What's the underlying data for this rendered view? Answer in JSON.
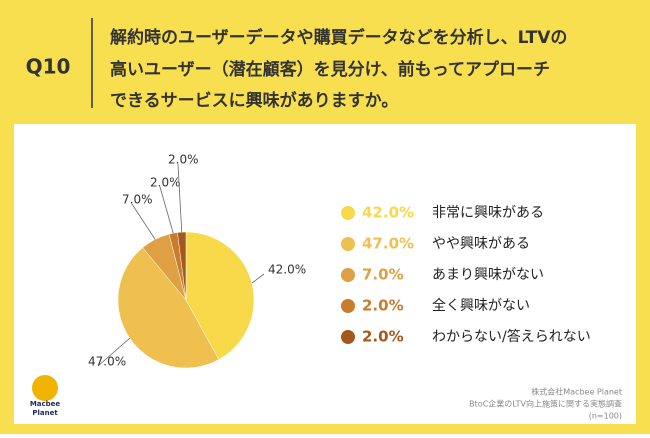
{
  "question_number": "Q10",
  "question_lines": [
    "解約時のユーザーデータや購買データなどを分析し、LTVの",
    "高いユーザー（潜在顧客）を見分け、前もってアプローチ",
    "できるサービスに興味がありますか。"
  ],
  "chart_data": {
    "type": "pie",
    "categories": [
      "非常に興味がある",
      "やや興味がある",
      "あまり興味がない",
      "全く興味がない",
      "わからない/答えられない"
    ],
    "values": [
      42,
      47,
      7,
      2,
      2
    ],
    "value_labels": [
      "42.0%",
      "47.0%",
      "7.0%",
      "2.0%",
      "2.0%"
    ],
    "colors": [
      "#f8d94a",
      "#efc050",
      "#dea043",
      "#c97c2c",
      "#a3591c"
    ],
    "legend": "right"
  },
  "source_lines": [
    "株式会社Macbee Planet",
    "BtoC企業のLTV向上施策に関する実態調査",
    "(n=100)"
  ],
  "logo_lines": [
    "Macbee",
    "Planet"
  ]
}
